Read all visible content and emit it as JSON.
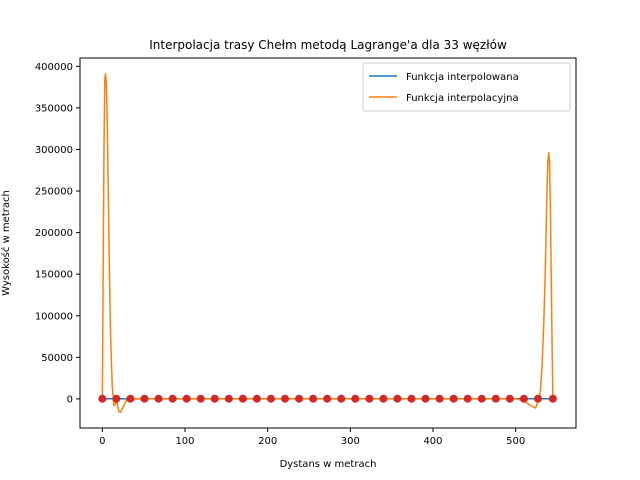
{
  "chart_data": {
    "type": "line",
    "title": "Interpolacja trasy Chełm metodą Lagrange'a dla 33 węzłów",
    "xlabel": "Dystans w metrach",
    "ylabel": "Wysokość w metrach",
    "xlim": [
      -27,
      573
    ],
    "ylim": [
      -35000,
      410000
    ],
    "xticks": [
      0,
      100,
      200,
      300,
      400,
      500
    ],
    "yticks": [
      0,
      50000,
      100000,
      150000,
      200000,
      250000,
      300000,
      350000,
      400000
    ],
    "legend_position": "top-right",
    "colors": {
      "interpolated": "#1f77b4",
      "interpolating": "#ff7f0e",
      "nodes": "#d62728"
    },
    "series": [
      {
        "name": "Funkcja interpolowana",
        "x": [
          0,
          17,
          34,
          51,
          68,
          85,
          102,
          119,
          136,
          153,
          170,
          187,
          204,
          221,
          238,
          255,
          272,
          289,
          306,
          323,
          340,
          357,
          374,
          391,
          408,
          425,
          442,
          459,
          476,
          493,
          510,
          527,
          545
        ],
        "y": [
          210,
          210,
          210,
          210,
          210,
          210,
          210,
          210,
          210,
          210,
          210,
          210,
          210,
          210,
          210,
          210,
          210,
          210,
          210,
          210,
          210,
          210,
          210,
          210,
          210,
          210,
          210,
          210,
          210,
          210,
          210,
          210,
          210
        ]
      },
      {
        "name": "Funkcja interpolacyjna",
        "x": [
          0,
          1,
          2,
          3,
          4,
          5,
          6,
          7,
          8,
          9,
          10,
          12,
          14,
          16,
          17,
          18,
          20,
          22,
          24,
          26,
          28,
          30,
          32,
          34,
          40,
          60,
          100,
          200,
          300,
          400,
          480,
          500,
          510,
          515,
          520,
          524,
          527,
          530,
          532,
          534,
          536,
          537,
          538,
          539,
          540,
          541,
          542,
          543,
          544,
          545
        ],
        "y": [
          0,
          150000,
          300000,
          385000,
          391000,
          375000,
          330000,
          265000,
          195000,
          130000,
          75000,
          15000,
          -8000,
          -6000,
          0,
          -5000,
          -15000,
          -16000,
          -12000,
          -8000,
          -4000,
          -1000,
          0,
          0,
          200,
          0,
          0,
          0,
          0,
          0,
          0,
          0,
          -2000,
          -6000,
          -9000,
          -11000,
          -4000,
          10000,
          40000,
          90000,
          160000,
          210000,
          255000,
          285000,
          296000,
          285000,
          230000,
          150000,
          70000,
          0
        ]
      }
    ],
    "nodes": {
      "x": [
        0,
        17,
        34,
        51,
        68,
        85,
        102,
        119,
        136,
        153,
        170,
        187,
        204,
        221,
        238,
        255,
        272,
        289,
        306,
        323,
        340,
        357,
        374,
        391,
        408,
        425,
        442,
        459,
        476,
        493,
        510,
        527,
        545
      ],
      "y": [
        210,
        210,
        210,
        210,
        210,
        210,
        210,
        210,
        210,
        210,
        210,
        210,
        210,
        210,
        210,
        210,
        210,
        210,
        210,
        210,
        210,
        210,
        210,
        210,
        210,
        210,
        210,
        210,
        210,
        210,
        210,
        210,
        210
      ]
    }
  }
}
